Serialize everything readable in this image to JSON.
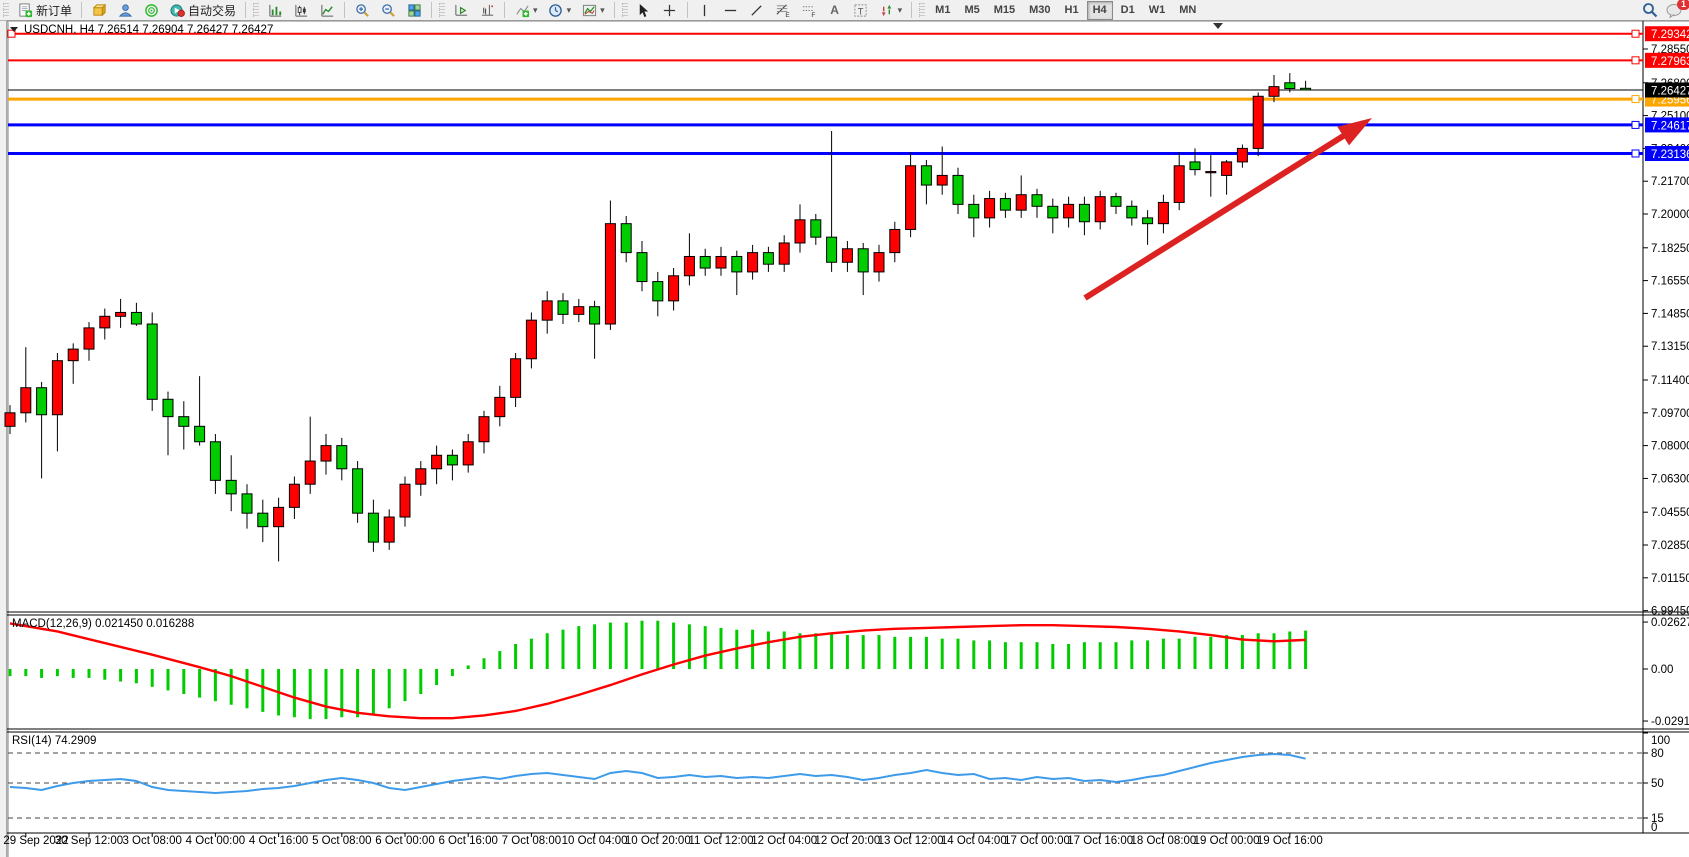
{
  "toolbar": {
    "new_order_label": "新订单",
    "autotrading_label": "自动交易",
    "timeframes": [
      "M1",
      "M5",
      "M15",
      "M30",
      "H1",
      "H4",
      "D1",
      "W1",
      "MN"
    ],
    "active_timeframe": "H4",
    "text_tool_label": "A",
    "fibo_sub": "E",
    "fibo_sub2": "F",
    "notification_count": "1"
  },
  "chart": {
    "title": "USDCNH, H4 7.26514 7.26904 7.26427 7.26427",
    "symbol": "USDCNH",
    "timeframe": "H4",
    "current_price": "7.26427",
    "price_ticks": [
      "7.28550",
      "7.26800",
      "7.25100",
      "7.23400",
      "7.21700",
      "7.20000",
      "7.18250",
      "7.16550",
      "7.14850",
      "7.13150",
      "7.11400",
      "7.09700",
      "7.08000",
      "7.06300",
      "7.04550",
      "7.02850",
      "7.01150",
      "6.99450"
    ],
    "time_labels": [
      "29 Sep 2022",
      "30 Sep 12:00",
      "3 Oct 08:00",
      "4 Oct 00:00",
      "4 Oct 16:00",
      "5 Oct 08:00",
      "6 Oct 00:00",
      "6 Oct 16:00",
      "7 Oct 08:00",
      "10 Oct 04:00",
      "10 Oct 20:00",
      "11 Oct 12:00",
      "12 Oct 04:00",
      "12 Oct 20:00",
      "13 Oct 12:00",
      "14 Oct 04:00",
      "17 Oct 00:00",
      "17 Oct 16:00",
      "18 Oct 08:00",
      "19 Oct 00:00",
      "19 Oct 16:00"
    ]
  },
  "macd_panel": {
    "label": "MACD(12,26,9) 0.021450 0.016288",
    "ticks": [
      "0.026274",
      "0.00",
      "-0.029115"
    ],
    "tick_values": [
      0.026274,
      0,
      -0.029115
    ]
  },
  "rsi_panel": {
    "label": "RSI(14) 74.2909",
    "ticks": [
      "100",
      "80",
      "50",
      "15",
      "0"
    ],
    "tick_values": [
      100,
      80,
      50,
      15,
      0
    ],
    "level_lines": [
      80,
      50,
      15
    ]
  },
  "chart_data": {
    "type": "candlestick+indicators",
    "title": "USDCNH H4",
    "bull_color": "#FF0000",
    "bear_color": "#00CC00",
    "wick_color": "#000000",
    "last_candle": {
      "open": 7.26514,
      "high": 7.26904,
      "low": 7.26427,
      "close": 7.26427
    },
    "current_price": 7.26427,
    "hlines": [
      {
        "price": 7.29342,
        "label": "7.29342",
        "color": "#FF0000",
        "width": 2
      },
      {
        "price": 7.27963,
        "label": "7.27963",
        "color": "#FF0000",
        "width": 2
      },
      {
        "price": 7.25956,
        "label": "7.25956",
        "color": "#FFA500",
        "width": 3
      },
      {
        "price": 7.24617,
        "label": "7.24617",
        "color": "#0000FF",
        "width": 3
      },
      {
        "price": 7.23136,
        "label": "7.23136",
        "color": "#0000FF",
        "width": 3
      }
    ],
    "candles": [
      [
        7.09,
        7.101,
        7.086,
        7.097
      ],
      [
        7.097,
        7.131,
        7.092,
        7.11
      ],
      [
        7.11,
        7.113,
        7.063,
        7.096
      ],
      [
        7.096,
        7.128,
        7.077,
        7.124
      ],
      [
        7.124,
        7.133,
        7.112,
        7.13
      ],
      [
        7.13,
        7.144,
        7.124,
        7.141
      ],
      [
        7.141,
        7.151,
        7.135,
        7.147
      ],
      [
        7.147,
        7.156,
        7.141,
        7.149
      ],
      [
        7.149,
        7.154,
        7.142,
        7.143
      ],
      [
        7.143,
        7.149,
        7.098,
        7.104
      ],
      [
        7.104,
        7.108,
        7.075,
        7.095
      ],
      [
        7.095,
        7.103,
        7.078,
        7.09
      ],
      [
        7.09,
        7.116,
        7.08,
        7.082
      ],
      [
        7.082,
        7.086,
        7.055,
        7.062
      ],
      [
        7.062,
        7.075,
        7.046,
        7.055
      ],
      [
        7.055,
        7.06,
        7.037,
        7.045
      ],
      [
        7.045,
        7.052,
        7.03,
        7.038
      ],
      [
        7.038,
        7.053,
        7.02,
        7.048
      ],
      [
        7.048,
        7.064,
        7.042,
        7.06
      ],
      [
        7.06,
        7.095,
        7.055,
        7.072
      ],
      [
        7.072,
        7.086,
        7.065,
        7.08
      ],
      [
        7.08,
        7.084,
        7.062,
        7.068
      ],
      [
        7.068,
        7.072,
        7.04,
        7.045
      ],
      [
        7.045,
        7.052,
        7.025,
        7.03
      ],
      [
        7.03,
        7.047,
        7.026,
        7.043
      ],
      [
        7.043,
        7.064,
        7.038,
        7.06
      ],
      [
        7.06,
        7.072,
        7.054,
        7.068
      ],
      [
        7.068,
        7.08,
        7.06,
        7.075
      ],
      [
        7.075,
        7.078,
        7.062,
        7.07
      ],
      [
        7.07,
        7.086,
        7.066,
        7.082
      ],
      [
        7.082,
        7.098,
        7.076,
        7.095
      ],
      [
        7.095,
        7.111,
        7.09,
        7.105
      ],
      [
        7.105,
        7.128,
        7.1,
        7.125
      ],
      [
        7.125,
        7.149,
        7.12,
        7.145
      ],
      [
        7.145,
        7.16,
        7.138,
        7.155
      ],
      [
        7.155,
        7.159,
        7.143,
        7.148
      ],
      [
        7.148,
        7.156,
        7.144,
        7.152
      ],
      [
        7.152,
        7.155,
        7.125,
        7.143
      ],
      [
        7.143,
        7.207,
        7.14,
        7.195
      ],
      [
        7.195,
        7.199,
        7.175,
        7.18
      ],
      [
        7.18,
        7.186,
        7.16,
        7.165
      ],
      [
        7.165,
        7.17,
        7.147,
        7.155
      ],
      [
        7.155,
        7.172,
        7.15,
        7.168
      ],
      [
        7.168,
        7.19,
        7.163,
        7.178
      ],
      [
        7.178,
        7.182,
        7.168,
        7.172
      ],
      [
        7.172,
        7.183,
        7.168,
        7.178
      ],
      [
        7.178,
        7.181,
        7.158,
        7.17
      ],
      [
        7.17,
        7.184,
        7.166,
        7.18
      ],
      [
        7.18,
        7.183,
        7.17,
        7.174
      ],
      [
        7.174,
        7.189,
        7.17,
        7.185
      ],
      [
        7.185,
        7.205,
        7.18,
        7.197
      ],
      [
        7.197,
        7.2,
        7.184,
        7.188
      ],
      [
        7.188,
        7.243,
        7.17,
        7.175
      ],
      [
        7.175,
        7.186,
        7.17,
        7.182
      ],
      [
        7.182,
        7.185,
        7.158,
        7.17
      ],
      [
        7.17,
        7.184,
        7.165,
        7.18
      ],
      [
        7.18,
        7.196,
        7.175,
        7.192
      ],
      [
        7.192,
        7.232,
        7.188,
        7.225
      ],
      [
        7.225,
        7.228,
        7.205,
        7.215
      ],
      [
        7.215,
        7.235,
        7.21,
        7.22
      ],
      [
        7.22,
        7.224,
        7.2,
        7.205
      ],
      [
        7.205,
        7.21,
        7.188,
        7.198
      ],
      [
        7.198,
        7.212,
        7.193,
        7.208
      ],
      [
        7.208,
        7.211,
        7.198,
        7.202
      ],
      [
        7.202,
        7.22,
        7.198,
        7.21
      ],
      [
        7.21,
        7.213,
        7.198,
        7.204
      ],
      [
        7.204,
        7.208,
        7.19,
        7.198
      ],
      [
        7.198,
        7.209,
        7.193,
        7.205
      ],
      [
        7.205,
        7.209,
        7.189,
        7.196
      ],
      [
        7.196,
        7.212,
        7.192,
        7.209
      ],
      [
        7.209,
        7.211,
        7.2,
        7.204
      ],
      [
        7.204,
        7.207,
        7.194,
        7.198
      ],
      [
        7.198,
        7.202,
        7.184,
        7.195
      ],
      [
        7.195,
        7.21,
        7.19,
        7.206
      ],
      [
        7.206,
        7.232,
        7.202,
        7.225
      ],
      [
        7.227,
        7.234,
        7.22,
        7.223
      ],
      [
        7.222,
        7.231,
        7.209,
        7.222
      ],
      [
        7.22,
        7.228,
        7.21,
        7.227
      ],
      [
        7.227,
        7.236,
        7.224,
        7.234
      ],
      [
        7.234,
        7.263,
        7.23,
        7.261
      ],
      [
        7.261,
        7.272,
        7.258,
        7.266
      ],
      [
        7.268,
        7.273,
        7.263,
        7.265
      ],
      [
        7.26514,
        7.26904,
        7.26427,
        7.26427
      ]
    ],
    "macd": {
      "histogram": [
        -0.004,
        -0.004,
        -0.005,
        -0.004,
        -0.005,
        -0.005,
        -0.006,
        -0.007,
        -0.008,
        -0.01,
        -0.012,
        -0.014,
        -0.016,
        -0.018,
        -0.02,
        -0.022,
        -0.024,
        -0.026,
        -0.027,
        -0.028,
        -0.028,
        -0.027,
        -0.027,
        -0.025,
        -0.022,
        -0.018,
        -0.014,
        -0.009,
        -0.004,
        0.002,
        0.006,
        0.01,
        0.014,
        0.017,
        0.02,
        0.022,
        0.024,
        0.025,
        0.026,
        0.026,
        0.027,
        0.027,
        0.026,
        0.025,
        0.024,
        0.023,
        0.022,
        0.022,
        0.021,
        0.021,
        0.02,
        0.02,
        0.02,
        0.019,
        0.019,
        0.019,
        0.018,
        0.018,
        0.018,
        0.017,
        0.017,
        0.016,
        0.016,
        0.015,
        0.015,
        0.015,
        0.014,
        0.014,
        0.015,
        0.015,
        0.015,
        0.016,
        0.016,
        0.017,
        0.017,
        0.018,
        0.018,
        0.019,
        0.019,
        0.02,
        0.02,
        0.021,
        0.0215
      ],
      "signal_points": [
        [
          0,
          0.0255
        ],
        [
          3,
          0.021
        ],
        [
          6,
          0.0145
        ],
        [
          9,
          0.008
        ],
        [
          12,
          0.001
        ],
        [
          14,
          -0.004
        ],
        [
          16,
          -0.01
        ],
        [
          18,
          -0.016
        ],
        [
          20,
          -0.021
        ],
        [
          22,
          -0.0245
        ],
        [
          24,
          -0.0265
        ],
        [
          26,
          -0.0275
        ],
        [
          28,
          -0.0275
        ],
        [
          30,
          -0.026
        ],
        [
          32,
          -0.0235
        ],
        [
          34,
          -0.0195
        ],
        [
          36,
          -0.0145
        ],
        [
          38,
          -0.009
        ],
        [
          40,
          -0.003
        ],
        [
          42,
          0.0025
        ],
        [
          44,
          0.0075
        ],
        [
          46,
          0.0115
        ],
        [
          48,
          0.015
        ],
        [
          50,
          0.018
        ],
        [
          52,
          0.02
        ],
        [
          54,
          0.0215
        ],
        [
          56,
          0.0225
        ],
        [
          58,
          0.023
        ],
        [
          60,
          0.0235
        ],
        [
          62,
          0.024
        ],
        [
          64,
          0.0245
        ],
        [
          66,
          0.0245
        ],
        [
          68,
          0.024
        ],
        [
          70,
          0.0235
        ],
        [
          72,
          0.0225
        ],
        [
          74,
          0.021
        ],
        [
          76,
          0.019
        ],
        [
          78,
          0.0165
        ],
        [
          80,
          0.0155
        ],
        [
          82,
          0.0163
        ]
      ],
      "main_value": 0.02145,
      "signal_value": 0.016288,
      "hist_color": "#00CC00",
      "signal_color": "#FF0000"
    },
    "rsi": {
      "points": [
        [
          0,
          46
        ],
        [
          1,
          45
        ],
        [
          2,
          43
        ],
        [
          3,
          47
        ],
        [
          4,
          50
        ],
        [
          5,
          52
        ],
        [
          6,
          53
        ],
        [
          7,
          54
        ],
        [
          8,
          52
        ],
        [
          9,
          46
        ],
        [
          10,
          43
        ],
        [
          11,
          42
        ],
        [
          12,
          41
        ],
        [
          13,
          40
        ],
        [
          14,
          41
        ],
        [
          15,
          42
        ],
        [
          16,
          44
        ],
        [
          17,
          45
        ],
        [
          18,
          47
        ],
        [
          19,
          50
        ],
        [
          20,
          53
        ],
        [
          21,
          55
        ],
        [
          22,
          53
        ],
        [
          23,
          50
        ],
        [
          24,
          45
        ],
        [
          25,
          43
        ],
        [
          26,
          46
        ],
        [
          27,
          49
        ],
        [
          28,
          52
        ],
        [
          29,
          54
        ],
        [
          30,
          56
        ],
        [
          31,
          54
        ],
        [
          32,
          57
        ],
        [
          33,
          59
        ],
        [
          34,
          60
        ],
        [
          35,
          58
        ],
        [
          36,
          56
        ],
        [
          37,
          54
        ],
        [
          38,
          60
        ],
        [
          39,
          62
        ],
        [
          40,
          60
        ],
        [
          41,
          55
        ],
        [
          42,
          56
        ],
        [
          43,
          58
        ],
        [
          44,
          56
        ],
        [
          45,
          57
        ],
        [
          46,
          55
        ],
        [
          47,
          56
        ],
        [
          48,
          55
        ],
        [
          49,
          57
        ],
        [
          50,
          59
        ],
        [
          51,
          57
        ],
        [
          52,
          58
        ],
        [
          53,
          56
        ],
        [
          54,
          53
        ],
        [
          55,
          55
        ],
        [
          56,
          58
        ],
        [
          57,
          60
        ],
        [
          58,
          63
        ],
        [
          59,
          60
        ],
        [
          60,
          58
        ],
        [
          61,
          59
        ],
        [
          62,
          54
        ],
        [
          63,
          55
        ],
        [
          64,
          53
        ],
        [
          65,
          56
        ],
        [
          66,
          54
        ],
        [
          67,
          55
        ],
        [
          68,
          52
        ],
        [
          69,
          53
        ],
        [
          70,
          51
        ],
        [
          71,
          53
        ],
        [
          72,
          56
        ],
        [
          73,
          58
        ],
        [
          74,
          62
        ],
        [
          75,
          66
        ],
        [
          76,
          70
        ],
        [
          77,
          73
        ],
        [
          78,
          76
        ],
        [
          79,
          78
        ],
        [
          80,
          79
        ],
        [
          81,
          78
        ],
        [
          82,
          74.3
        ]
      ],
      "last_value": 74.2909,
      "line_color": "#3E9BEA"
    },
    "trend_arrow": {
      "from": [
        1085,
        298
      ],
      "tip": [
        1372,
        118
      ],
      "color": "#DD2222"
    }
  }
}
